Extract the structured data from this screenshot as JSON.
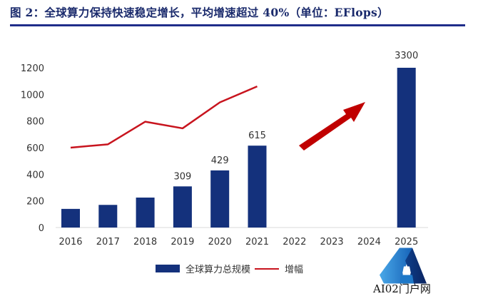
{
  "title": "图 2：全球算力保持快速稳定增长，平均增速超过 40%（单位：EFlops）",
  "legend": {
    "bar_label": "全球算力总规模",
    "line_label": "增幅"
  },
  "watermark": {
    "text": "AI02门户网"
  },
  "colors": {
    "bar": "#14317c",
    "line": "#c8141e",
    "arrow": "#c00000",
    "title": "#1a2a6c"
  },
  "chart_data": {
    "type": "bar",
    "title": "全球算力保持快速稳定增长，平均增速超过 40%（单位：EFlops）",
    "xlabel": "",
    "ylabel": "",
    "ylim": [
      0,
      1200
    ],
    "yticks": [
      "0",
      "200",
      "400",
      "600",
      "800",
      "1000",
      "1200"
    ],
    "categories": [
      "2016",
      "2017",
      "2018",
      "2019",
      "2020",
      "2021",
      "2022",
      "2023",
      "2024",
      "2025"
    ],
    "series": [
      {
        "name": "全球算力总规模",
        "type": "bar",
        "values": [
          140,
          170,
          225,
          309,
          429,
          615,
          null,
          null,
          null,
          3300
        ],
        "data_labels": [
          "",
          "",
          "",
          "309",
          "429",
          "615",
          "",
          "",
          "",
          "3300"
        ],
        "note": "2025 bar truncated at axis max 1200"
      },
      {
        "name": "增幅",
        "type": "line",
        "values": [
          600,
          625,
          795,
          745,
          940,
          1060,
          null,
          null,
          null,
          null
        ],
        "note": "plotted on same axis scale; no labels shown"
      }
    ],
    "annotations": [
      "red up-right arrow between 2022 and 2024"
    ],
    "grid": false,
    "legend_position": "bottom"
  }
}
